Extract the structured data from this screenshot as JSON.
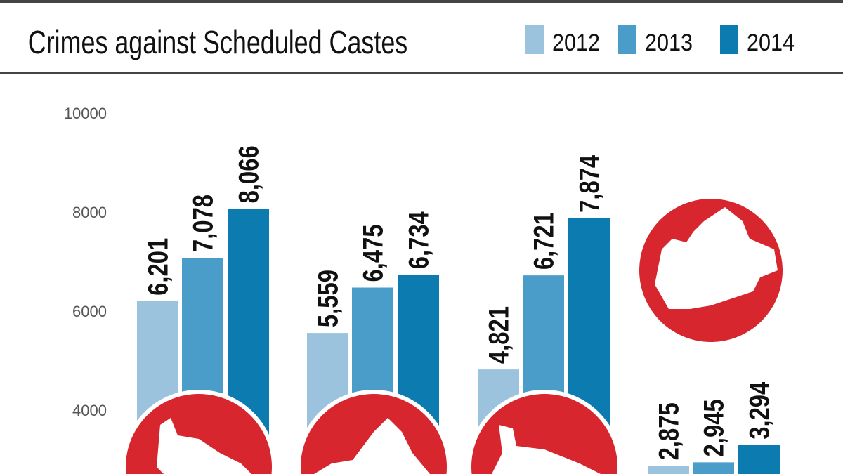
{
  "chart_data": {
    "type": "bar",
    "title": "Crimes against Scheduled Castes",
    "ylim": [
      0,
      10000
    ],
    "yticks": [
      "10000",
      "8000",
      "6000",
      "4000"
    ],
    "ytick_values": [
      10000,
      8000,
      6000,
      4000
    ],
    "grid": false,
    "legend_placement": "top-right",
    "series": [
      {
        "name": "2012",
        "color": "#9cc3de",
        "values": [
          6201,
          5559,
          4821,
          2875
        ],
        "labels": [
          "6,201",
          "5,559",
          "4,821",
          "2,875"
        ]
      },
      {
        "name": "2013",
        "color": "#4a9cc9",
        "values": [
          7078,
          6475,
          6721,
          2945
        ],
        "labels": [
          "7,078",
          "6,475",
          "6,721",
          "2,945"
        ]
      },
      {
        "name": "2014",
        "color": "#0b7bb0",
        "values": [
          8066,
          6734,
          7874,
          3294
        ],
        "labels": [
          "8,066",
          "6,734",
          "7,874",
          "3,294"
        ]
      }
    ],
    "group_icons": [
      "state-map-icon",
      "state-map-icon",
      "state-map-icon",
      "state-map-icon"
    ],
    "accent_color": "#d7262e"
  }
}
